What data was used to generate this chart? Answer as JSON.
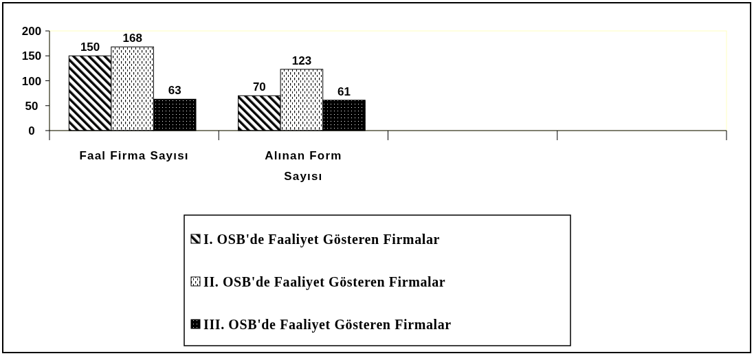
{
  "chart_data": {
    "type": "bar",
    "categories": [
      "Faal Firma Sayısı",
      "Alınan Form Sayısı",
      null,
      null
    ],
    "series": [
      {
        "name": "I. OSB'de Faaliyet Gösteren Firmalar",
        "color": "#000000",
        "values": [
          150,
          70,
          null,
          null
        ]
      },
      {
        "name": "II. OSB'de Faaliyet Gösteren Firmalar",
        "color": "#000000",
        "values": [
          168,
          123,
          null,
          null
        ]
      },
      {
        "name": "III. OSB'de Faaliyet Gösteren Firmalar",
        "color": "#000000",
        "values": [
          63,
          61,
          null,
          null
        ]
      }
    ],
    "ylim": [
      0,
      200
    ],
    "yticks": [
      0,
      50,
      100,
      150,
      200
    ],
    "data_labels": true,
    "legend": "bottom"
  }
}
